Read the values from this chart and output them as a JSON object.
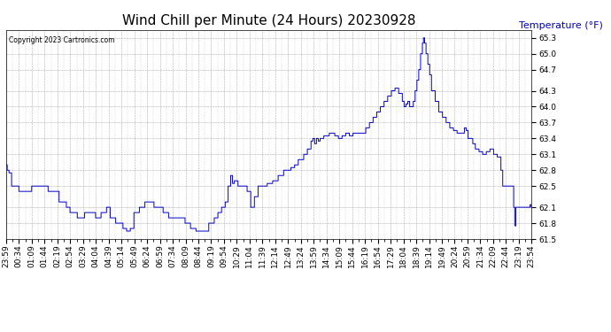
{
  "title": "Wind Chill per Minute (24 Hours) 20230928",
  "ylabel": "Temperature (°F)",
  "copyright": "Copyright 2023 Cartronics.com",
  "ylabel_color": "#0000cc",
  "line_color": "#0000cc",
  "bg_color": "#ffffff",
  "grid_color": "#999999",
  "ylim": [
    61.5,
    65.45
  ],
  "yticks": [
    61.5,
    61.8,
    62.1,
    62.5,
    62.8,
    63.1,
    63.4,
    63.7,
    64.0,
    64.3,
    64.7,
    65.0,
    65.3
  ],
  "xtick_labels": [
    "23:59",
    "00:34",
    "01:09",
    "01:44",
    "02:19",
    "02:54",
    "03:29",
    "04:04",
    "04:39",
    "05:14",
    "05:49",
    "06:24",
    "06:59",
    "07:34",
    "08:09",
    "08:44",
    "09:19",
    "09:54",
    "10:29",
    "11:04",
    "11:39",
    "12:14",
    "12:49",
    "13:24",
    "13:59",
    "14:34",
    "15:09",
    "15:44",
    "16:19",
    "16:54",
    "17:29",
    "18:04",
    "18:39",
    "19:14",
    "19:49",
    "20:24",
    "20:59",
    "21:34",
    "22:09",
    "22:44",
    "23:19",
    "23:54"
  ],
  "num_xticks": 42,
  "title_fontsize": 11,
  "label_fontsize": 8,
  "tick_fontsize": 6.5
}
